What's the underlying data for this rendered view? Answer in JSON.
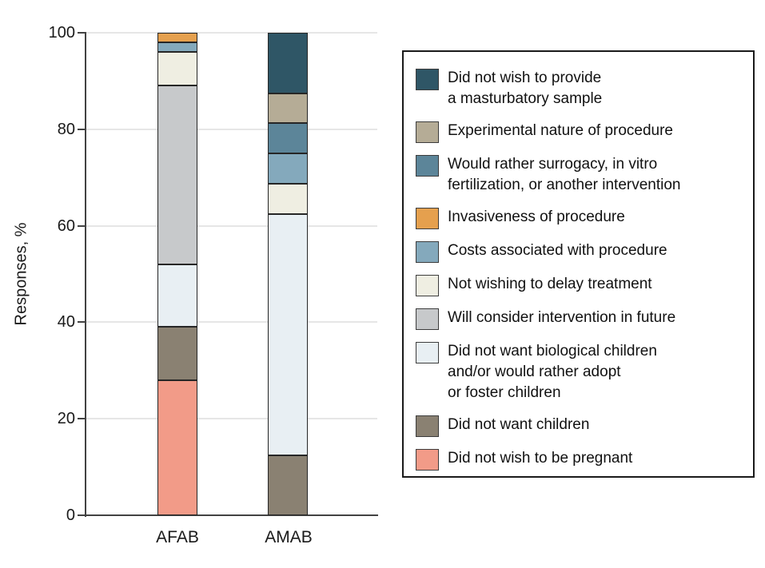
{
  "chart_data": {
    "type": "bar",
    "stacked": true,
    "title": "",
    "xlabel": "",
    "ylabel": "Responses, %",
    "ylim": [
      0,
      100
    ],
    "yticks": [
      0,
      20,
      40,
      60,
      80,
      100
    ],
    "grid": "horizontal",
    "legend_position": "right",
    "categories": [
      "AFAB",
      "AMAB"
    ],
    "series": [
      {
        "name": "Did not wish to provide a masturbatory sample",
        "legend_lines": [
          "Did not wish to provide",
          "a masturbatory sample"
        ],
        "color": "#2F5666",
        "values": [
          0,
          12.5
        ]
      },
      {
        "name": "Experimental nature of procedure",
        "legend_lines": [
          "Experimental nature of procedure"
        ],
        "color": "#B5AC96",
        "values": [
          0,
          6.25
        ]
      },
      {
        "name": "Would rather surrogacy, in vitro fertilization, or another intervention",
        "legend_lines": [
          "Would rather surrogacy, in vitro",
          "fertilization, or another intervention"
        ],
        "color": "#5C8599",
        "values": [
          0,
          6.25
        ]
      },
      {
        "name": "Invasiveness of procedure",
        "legend_lines": [
          "Invasiveness of procedure"
        ],
        "color": "#E5A04E",
        "values": [
          2,
          0
        ]
      },
      {
        "name": "Costs associated with procedure",
        "legend_lines": [
          "Costs associated with procedure"
        ],
        "color": "#84A9BC",
        "values": [
          2,
          6.25
        ]
      },
      {
        "name": "Not wishing to delay treatment",
        "legend_lines": [
          "Not wishing to delay treatment"
        ],
        "color": "#EFEEE2",
        "values": [
          7,
          6.25
        ]
      },
      {
        "name": "Will consider intervention in future",
        "legend_lines": [
          "Will consider intervention in future"
        ],
        "color": "#C7C9CB",
        "values": [
          37,
          0
        ]
      },
      {
        "name": "Did not want biological children and/or would rather adopt or foster children",
        "legend_lines": [
          "Did not want biological children",
          "and/or would rather adopt",
          "or foster children"
        ],
        "color": "#E8EFF3",
        "values": [
          13,
          50
        ]
      },
      {
        "name": "Did not want children",
        "legend_lines": [
          "Did not want children"
        ],
        "color": "#8A8172",
        "values": [
          11,
          12.5
        ]
      },
      {
        "name": "Did not wish to be pregnant",
        "legend_lines": [
          "Did not wish to be pregnant"
        ],
        "color": "#F29B88",
        "values": [
          28,
          0
        ]
      }
    ]
  }
}
